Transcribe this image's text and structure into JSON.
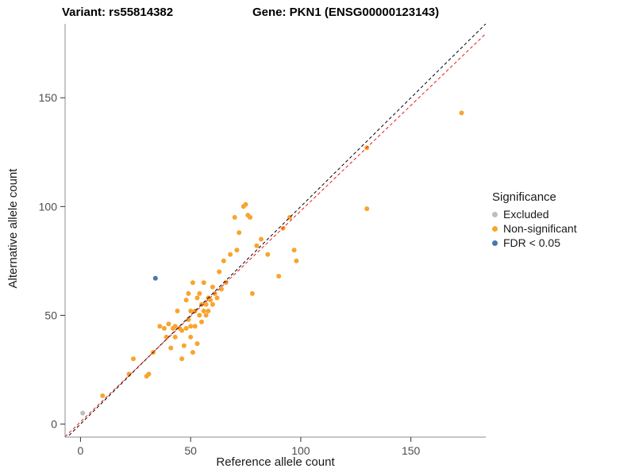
{
  "titles": {
    "variant": "Variant: rs55814382",
    "gene": "Gene: PKN1 (ENSG00000123143)"
  },
  "chart_data": {
    "type": "scatter",
    "title": "Variant: rs55814382  /  Gene: PKN1 (ENSG00000123143)",
    "xlabel": "Reference allele count",
    "ylabel": "Alternative allele count",
    "xlim": [
      -7,
      184
    ],
    "ylim": [
      -6,
      184
    ],
    "xticks": [
      0,
      50,
      100,
      150
    ],
    "yticks": [
      0,
      50,
      100,
      150
    ],
    "grid": false,
    "legend": {
      "title": "Significance",
      "position": "right",
      "entries": [
        {
          "label": "Excluded",
          "color": "#bdbdbd"
        },
        {
          "label": "Non-significant",
          "color": "#f8a42f"
        },
        {
          "label": "FDR < 0.05",
          "color": "#4878a8"
        }
      ]
    },
    "lines": [
      {
        "name": "identity",
        "slope": 1,
        "intercept": 0,
        "color": "#000000",
        "dash": true
      },
      {
        "name": "fit",
        "slope": 0.97,
        "intercept": 1.0,
        "color": "#e41a1c",
        "dash": true
      }
    ],
    "series": [
      {
        "name": "Excluded",
        "color": "#bdbdbd",
        "points": [
          [
            1,
            5
          ]
        ]
      },
      {
        "name": "Non-significant",
        "color": "#f8a42f",
        "points": [
          [
            10,
            13
          ],
          [
            22,
            23
          ],
          [
            24,
            30
          ],
          [
            30,
            22
          ],
          [
            31,
            23
          ],
          [
            33,
            33
          ],
          [
            36,
            45
          ],
          [
            38,
            44
          ],
          [
            39,
            40
          ],
          [
            40,
            46
          ],
          [
            41,
            35
          ],
          [
            42,
            44
          ],
          [
            43,
            45
          ],
          [
            43,
            40
          ],
          [
            44,
            52
          ],
          [
            45,
            44
          ],
          [
            46,
            30
          ],
          [
            46,
            43
          ],
          [
            47,
            36
          ],
          [
            48,
            44
          ],
          [
            48,
            57
          ],
          [
            49,
            60
          ],
          [
            49,
            48
          ],
          [
            50,
            52
          ],
          [
            50,
            45
          ],
          [
            50,
            40
          ],
          [
            51,
            65
          ],
          [
            51,
            33
          ],
          [
            52,
            45
          ],
          [
            52,
            52
          ],
          [
            53,
            58
          ],
          [
            53,
            37
          ],
          [
            54,
            60
          ],
          [
            54,
            50
          ],
          [
            55,
            55
          ],
          [
            55,
            47
          ],
          [
            56,
            52
          ],
          [
            56,
            65
          ],
          [
            57,
            50
          ],
          [
            57,
            55
          ],
          [
            58,
            58
          ],
          [
            58,
            52
          ],
          [
            59,
            57
          ],
          [
            60,
            63
          ],
          [
            60,
            55
          ],
          [
            61,
            60
          ],
          [
            62,
            58
          ],
          [
            63,
            70
          ],
          [
            64,
            62
          ],
          [
            65,
            75
          ],
          [
            66,
            65
          ],
          [
            68,
            78
          ],
          [
            70,
            95
          ],
          [
            71,
            80
          ],
          [
            72,
            88
          ],
          [
            74,
            100
          ],
          [
            75,
            101
          ],
          [
            76,
            96
          ],
          [
            77,
            95
          ],
          [
            78,
            60
          ],
          [
            80,
            82
          ],
          [
            82,
            85
          ],
          [
            85,
            78
          ],
          [
            90,
            68
          ],
          [
            92,
            90
          ],
          [
            95,
            95
          ],
          [
            97,
            80
          ],
          [
            98,
            75
          ],
          [
            130,
            99
          ],
          [
            130,
            127
          ],
          [
            173,
            143
          ]
        ]
      },
      {
        "name": "FDR < 0.05",
        "color": "#4878a8",
        "points": [
          [
            34,
            67
          ]
        ]
      }
    ]
  }
}
